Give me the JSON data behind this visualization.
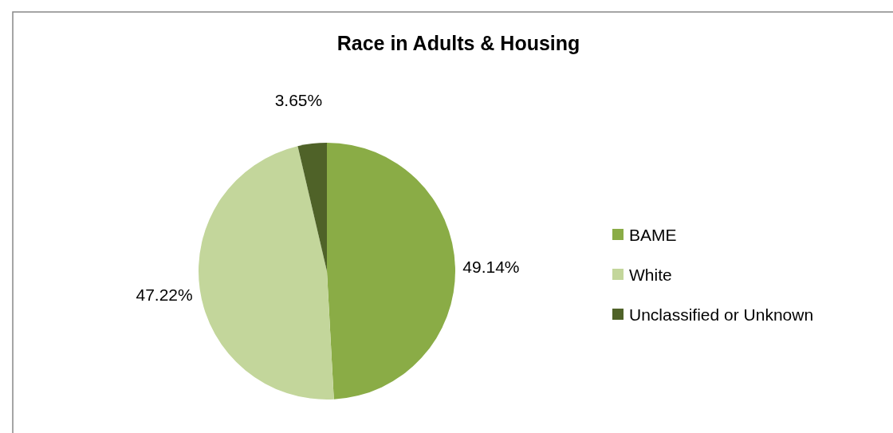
{
  "chart_data": {
    "type": "pie",
    "title": "Race in Adults & Housing",
    "categories": [
      "BAME",
      "White",
      "Unclassified or Unknown"
    ],
    "values": [
      49.14,
      47.22,
      3.65
    ],
    "colors": [
      "#8aac46",
      "#c3d69b",
      "#4f6228"
    ],
    "value_labels": [
      "49.14%",
      "47.22%",
      "3.65%"
    ],
    "legend": "right"
  }
}
